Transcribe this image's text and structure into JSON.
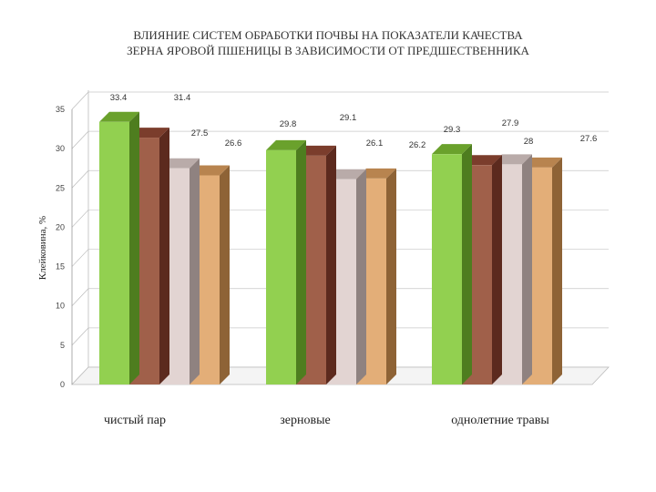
{
  "chart_data": {
    "type": "bar",
    "title_lines": [
      "ВЛИЯНИЕ СИСТЕМ ОБРАБОТКИ ПОЧВЫ НА ПОКАЗАТЕЛИ КАЧЕСТВА",
      "ЗЕРНА ЯРОВОЙ ПШЕНИЦЫ В ЗАВИСИМОСТИ ОТ ПРЕДШЕСТВЕННИКА"
    ],
    "ylabel": "Клейковина, %",
    "xlabel": "",
    "ylim": [
      0,
      35
    ],
    "yticks": [
      0,
      5,
      10,
      15,
      20,
      25,
      30,
      35
    ],
    "grid": true,
    "legend": "none",
    "categories": [
      "чистый пар",
      "зерновые",
      "однолетние травы"
    ],
    "series": [
      {
        "color": "#92d050",
        "top": "#6aa12c",
        "side": "#4e7d1f",
        "values": [
          33.4,
          29.8,
          29.3
        ]
      },
      {
        "color": "#a0604a",
        "top": "#7b3d2c",
        "side": "#5c2a1e",
        "values": [
          31.4,
          29.1,
          27.9
        ]
      },
      {
        "color": "#e2d4d2",
        "top": "#b9aba9",
        "side": "#8f8280",
        "values": [
          27.5,
          26.1,
          28.0
        ]
      },
      {
        "color": "#e3ae78",
        "top": "#b8844f",
        "side": "#8e6336",
        "values": [
          26.6,
          26.2,
          27.6
        ]
      }
    ],
    "data_labels": [
      [
        "33.4",
        "31.4",
        "27.5",
        "26.6"
      ],
      [
        "29.8",
        "29.1",
        "26.1",
        "26.2"
      ],
      [
        "29.3",
        "27.9",
        "28",
        "27.6"
      ]
    ]
  }
}
